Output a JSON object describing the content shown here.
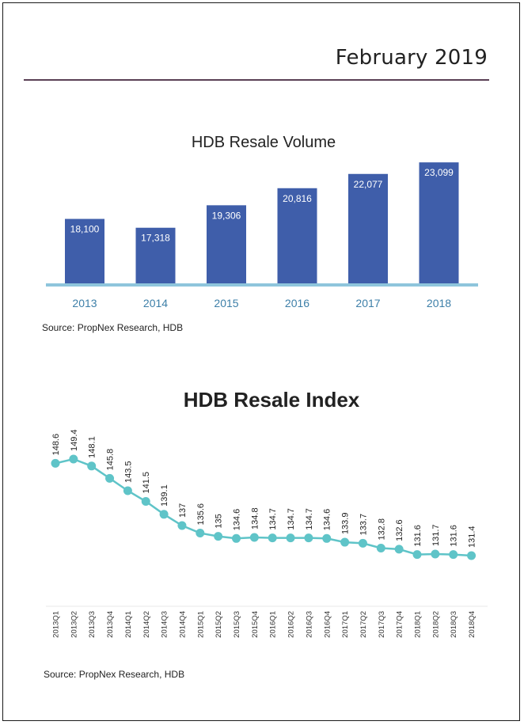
{
  "header": {
    "date": "February 2019"
  },
  "colors": {
    "bar": "#3f5eaa",
    "baseline": "#8ec5dc",
    "line": "#5fc4c8",
    "tick_text": "#3d7fa8",
    "divider": "#5a3f55"
  },
  "chart_data": [
    {
      "type": "bar",
      "title": "HDB Resale Volume",
      "categories": [
        "2013",
        "2014",
        "2015",
        "2016",
        "2017",
        "2018"
      ],
      "values": [
        18100,
        17318,
        19306,
        20816,
        22077,
        23099
      ],
      "value_labels": [
        "18,100",
        "17,318",
        "19,306",
        "20,816",
        "22,077",
        "23,099"
      ],
      "xlabel": "",
      "ylabel": "",
      "ylim": [
        12400,
        23600
      ],
      "grid": false,
      "source": "Source: PropNex Research, HDB"
    },
    {
      "type": "line",
      "title": "HDB Resale Index",
      "x": [
        "2013Q1",
        "2013Q2",
        "2013Q3",
        "2013Q4",
        "2014Q1",
        "2014Q2",
        "2014Q3",
        "2014Q4",
        "2015Q1",
        "2015Q2",
        "2015Q3",
        "2015Q4",
        "2016Q1",
        "2016Q2",
        "2016Q3",
        "2016Q4",
        "2017Q1",
        "2017Q2",
        "2017Q3",
        "2017Q4",
        "2018Q1",
        "2018Q2",
        "2018Q3",
        "2018Q4"
      ],
      "values": [
        148.6,
        149.4,
        148.1,
        145.8,
        143.5,
        141.5,
        139.1,
        137,
        135.6,
        135,
        134.6,
        134.8,
        134.7,
        134.7,
        134.7,
        134.6,
        133.9,
        133.7,
        132.8,
        132.6,
        131.6,
        131.7,
        131.6,
        131.4
      ],
      "value_labels": [
        "148.6",
        "149.4",
        "148.1",
        "145.8",
        "143.5",
        "141.5",
        "139.1",
        "137",
        "135.6",
        "135",
        "134.6",
        "134.8",
        "134.7",
        "134.7",
        "134.7",
        "134.6",
        "133.9",
        "133.7",
        "132.8",
        "132.6",
        "131.6",
        "131.7",
        "131.6",
        "131.4"
      ],
      "xlabel": "",
      "ylabel": "",
      "ylim": [
        128,
        152
      ],
      "grid": false,
      "source": "Source: PropNex Research, HDB"
    }
  ]
}
